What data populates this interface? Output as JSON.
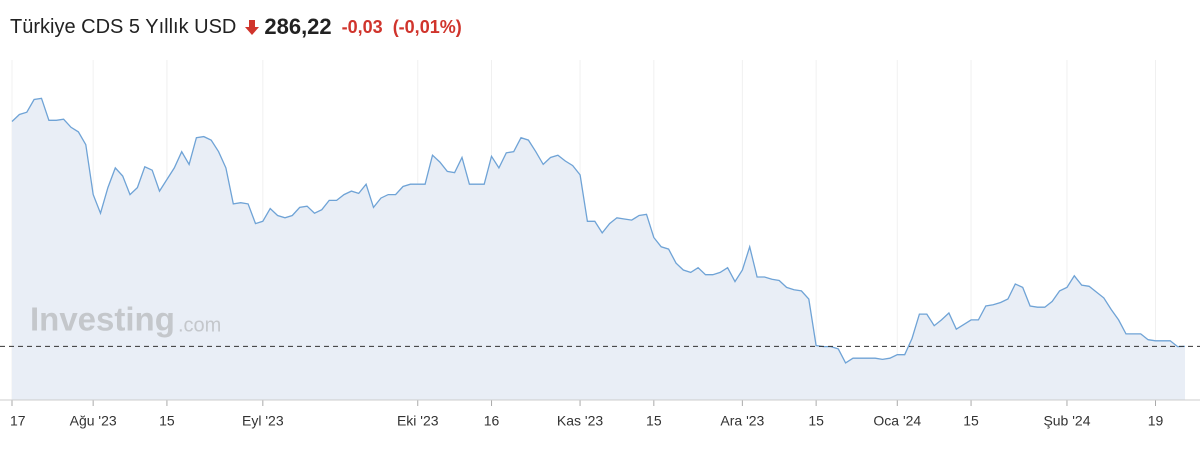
{
  "header": {
    "title": "Türkiye CDS 5 Yıllık USD",
    "price": "286,22",
    "change": "-0,03",
    "change_percent": "(-0,01%)"
  },
  "watermark": {
    "brand": "Investing",
    "suffix": ".com"
  },
  "chart_data": {
    "type": "area",
    "categories": [
      "17",
      null,
      null,
      null,
      null,
      null,
      null,
      null,
      null,
      null,
      null,
      "Ağu '23",
      null,
      null,
      null,
      null,
      null,
      null,
      null,
      null,
      null,
      "15",
      null,
      null,
      null,
      null,
      null,
      null,
      null,
      null,
      null,
      null,
      null,
      null,
      "Eyl '23",
      null,
      null,
      null,
      null,
      null,
      null,
      null,
      null,
      null,
      null,
      null,
      null,
      null,
      null,
      null,
      null,
      null,
      null,
      null,
      null,
      "Eki '23",
      null,
      null,
      null,
      null,
      null,
      null,
      null,
      null,
      null,
      "16",
      null,
      null,
      null,
      null,
      null,
      null,
      null,
      null,
      null,
      null,
      null,
      "Kas '23",
      null,
      null,
      null,
      null,
      null,
      null,
      null,
      null,
      null,
      "15",
      null,
      null,
      null,
      null,
      null,
      null,
      null,
      null,
      null,
      null,
      null,
      "Ara '23",
      null,
      null,
      null,
      null,
      null,
      null,
      null,
      null,
      null,
      "15",
      null,
      null,
      null,
      null,
      null,
      null,
      null,
      null,
      null,
      null,
      "Oca '24",
      null,
      null,
      null,
      null,
      null,
      null,
      null,
      null,
      null,
      "15",
      null,
      null,
      null,
      null,
      null,
      null,
      null,
      null,
      null,
      null,
      null,
      null,
      "Şub '24",
      null,
      null,
      null,
      null,
      null,
      null,
      null,
      null,
      null,
      null,
      null,
      "19",
      null,
      null,
      null,
      null
    ],
    "values": [
      480,
      486,
      488,
      499,
      500,
      481,
      481,
      482,
      475,
      471,
      460,
      417,
      401,
      423,
      440,
      433,
      417,
      423,
      441,
      438,
      420,
      430,
      440,
      454,
      443,
      466,
      467,
      464,
      454,
      440,
      409,
      410,
      409,
      392,
      394,
      405,
      399,
      397,
      399,
      406,
      407,
      401,
      404,
      412,
      412,
      417,
      420,
      418,
      426,
      406,
      414,
      417,
      417,
      424,
      426,
      426,
      426,
      451,
      445,
      437,
      436,
      449,
      426,
      426,
      426,
      450,
      440,
      453,
      454,
      466,
      464,
      454,
      443,
      449,
      451,
      446,
      442,
      434,
      394,
      394,
      384,
      392,
      397,
      396,
      395,
      399,
      400,
      380,
      372,
      370,
      358,
      352,
      350,
      354,
      348,
      348,
      350,
      354,
      342,
      352,
      372,
      346,
      346,
      344,
      343,
      337,
      335,
      334,
      327,
      287,
      286,
      286,
      284,
      272,
      276,
      276,
      276,
      276,
      275,
      276,
      279,
      279,
      293,
      314,
      314,
      304,
      309,
      315,
      301,
      305,
      309,
      309,
      321,
      322,
      324,
      327,
      340,
      337,
      321,
      320,
      320,
      325,
      334,
      337,
      347,
      339,
      338,
      333,
      328,
      318,
      309,
      297,
      297,
      297,
      292,
      291,
      291,
      291,
      286,
      286.22
    ],
    "color": "#6fa3d6",
    "fill": "#e9eef6",
    "ylim": [
      240,
      533
    ],
    "grid": true
  }
}
